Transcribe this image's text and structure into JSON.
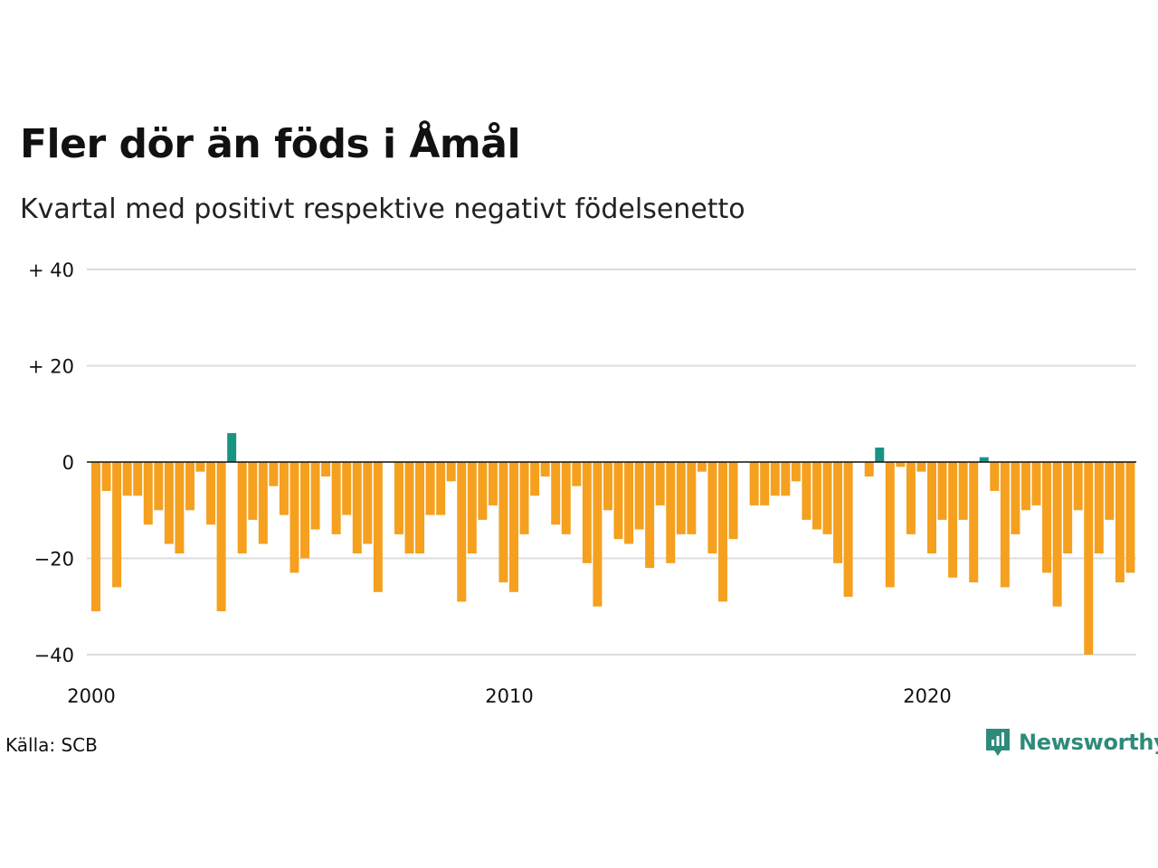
{
  "title": "Fler dör än föds i Åmål",
  "subtitle": "Kvartal med positivt respektive negativt födelsenetto",
  "source": "Källa: SCB",
  "brand": "Newsworthy",
  "colors": {
    "positive": "#1a9482",
    "negative": "#f5a01f",
    "grid": "#dddddd",
    "zero": "#111111",
    "brand": "#2e8b7a"
  },
  "chart_data": {
    "type": "bar",
    "title": "Fler dör än föds i Åmål",
    "subtitle": "Kvartal med positivt respektive negativt födelsenetto",
    "xlabel": "",
    "ylabel": "",
    "ylim": [
      -40,
      40
    ],
    "y_ticks": [
      {
        "value": 40,
        "label": "+ 40"
      },
      {
        "value": 20,
        "label": "+ 20"
      },
      {
        "value": 0,
        "label": "0"
      },
      {
        "value": -20,
        "label": "−20"
      },
      {
        "value": -40,
        "label": "−40"
      }
    ],
    "x_ticks": [
      {
        "year": 2000,
        "label": "2000"
      },
      {
        "year": 2010,
        "label": "2010"
      },
      {
        "year": 2020,
        "label": "2020"
      }
    ],
    "start": "2000 Q1",
    "categories": [
      "2000 Q1",
      "2000 Q2",
      "2000 Q3",
      "2000 Q4",
      "2001 Q1",
      "2001 Q2",
      "2001 Q3",
      "2001 Q4",
      "2002 Q1",
      "2002 Q2",
      "2002 Q3",
      "2002 Q4",
      "2003 Q1",
      "2003 Q2",
      "2003 Q3",
      "2003 Q4",
      "2004 Q1",
      "2004 Q2",
      "2004 Q3",
      "2004 Q4",
      "2005 Q1",
      "2005 Q2",
      "2005 Q3",
      "2005 Q4",
      "2006 Q1",
      "2006 Q2",
      "2006 Q3",
      "2006 Q4",
      "2007 Q1",
      "2007 Q2",
      "2007 Q3",
      "2007 Q4",
      "2008 Q1",
      "2008 Q2",
      "2008 Q3",
      "2008 Q4",
      "2009 Q1",
      "2009 Q2",
      "2009 Q3",
      "2009 Q4",
      "2010 Q1",
      "2010 Q2",
      "2010 Q3",
      "2010 Q4",
      "2011 Q1",
      "2011 Q2",
      "2011 Q3",
      "2011 Q4",
      "2012 Q1",
      "2012 Q2",
      "2012 Q3",
      "2012 Q4",
      "2013 Q1",
      "2013 Q2",
      "2013 Q3",
      "2013 Q4",
      "2014 Q1",
      "2014 Q2",
      "2014 Q3",
      "2014 Q4",
      "2015 Q1",
      "2015 Q2",
      "2015 Q3",
      "2015 Q4",
      "2016 Q1",
      "2016 Q2",
      "2016 Q3",
      "2016 Q4",
      "2017 Q1",
      "2017 Q2",
      "2017 Q3",
      "2017 Q4",
      "2018 Q1",
      "2018 Q2",
      "2018 Q3",
      "2018 Q4",
      "2019 Q1",
      "2019 Q2",
      "2019 Q3",
      "2019 Q4",
      "2020 Q1",
      "2020 Q2",
      "2020 Q3",
      "2020 Q4",
      "2021 Q1",
      "2021 Q2",
      "2021 Q3",
      "2021 Q4",
      "2022 Q1",
      "2022 Q2",
      "2022 Q3",
      "2022 Q4",
      "2023 Q1",
      "2023 Q2",
      "2023 Q3",
      "2023 Q4",
      "2024 Q1",
      "2024 Q2",
      "2024 Q3",
      "2024 Q4"
    ],
    "values": [
      -31,
      -6,
      -26,
      -7,
      -7,
      -13,
      -10,
      -17,
      -19,
      -10,
      -2,
      -13,
      -31,
      6,
      -19,
      -12,
      -17,
      -5,
      -11,
      -23,
      -20,
      -14,
      -3,
      -15,
      -11,
      -19,
      -17,
      -27,
      0,
      -15,
      -19,
      -19,
      -11,
      -11,
      -4,
      -29,
      -19,
      -12,
      -9,
      -25,
      -27,
      -15,
      -7,
      -3,
      -13,
      -15,
      -5,
      -21,
      -30,
      -10,
      -16,
      -17,
      -14,
      -22,
      -9,
      -21,
      -15,
      -15,
      -2,
      -19,
      -29,
      -16,
      0,
      -9,
      -9,
      -7,
      -7,
      -4,
      -12,
      -14,
      -15,
      -21,
      -28,
      0,
      -3,
      3,
      -26,
      -1,
      -15,
      -2,
      -19,
      -12,
      -24,
      -12,
      -25,
      1,
      -6,
      -26,
      -15,
      -10,
      -9,
      -23,
      -30,
      -19,
      -10,
      -40,
      -19,
      -12,
      -25,
      -23
    ],
    "grid": true,
    "legend": "none"
  }
}
